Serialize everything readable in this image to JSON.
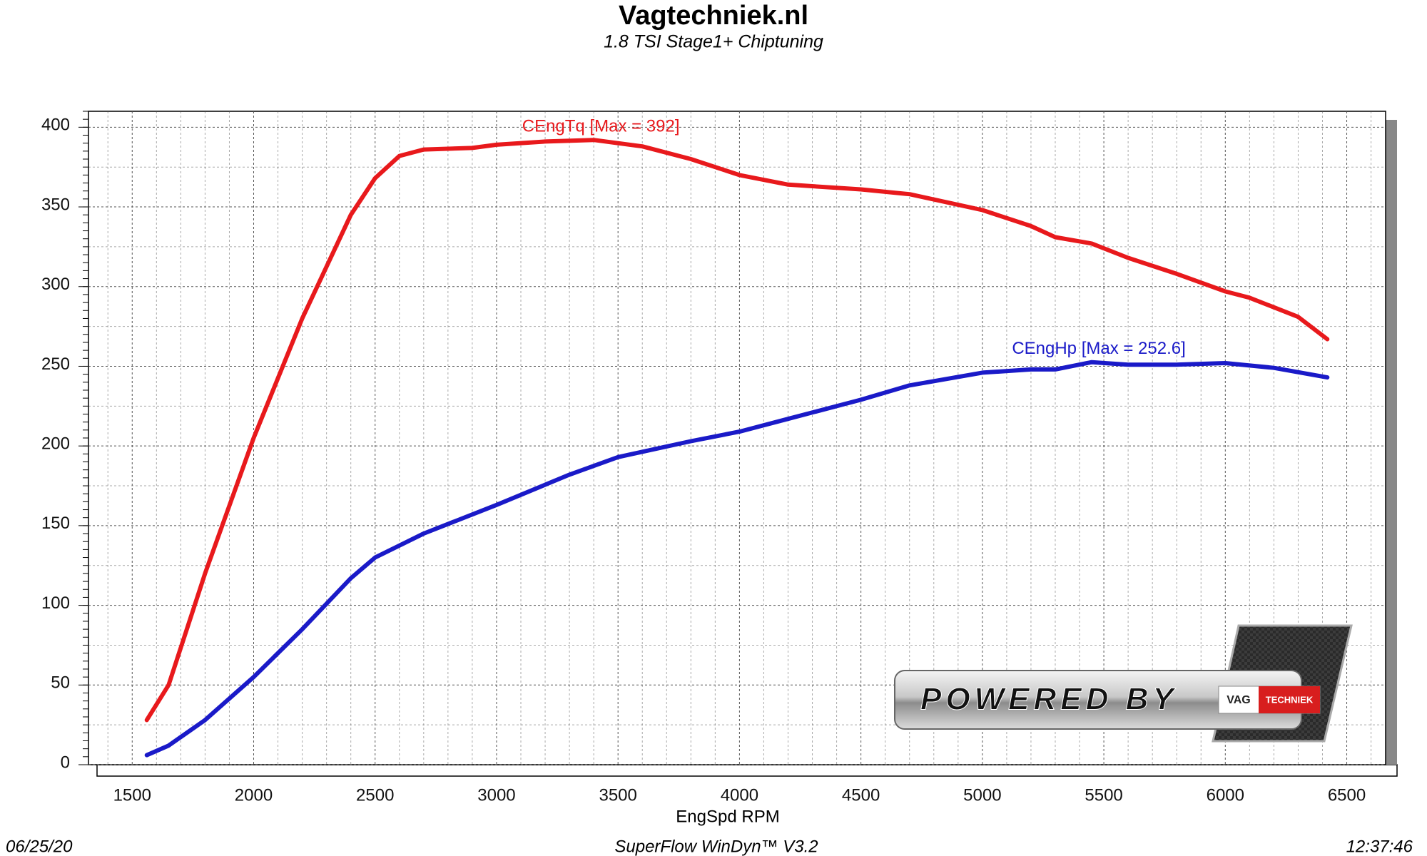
{
  "chart_data": {
    "type": "line",
    "title": "Vagtechniek.nl",
    "subtitle": "1.8 TSI Stage1+ Chiptuning",
    "x_label": "EngSpd RPM",
    "footer": {
      "left": "06/25/20",
      "center": "SuperFlow WinDyn™  V3.2",
      "right": "12:37:46"
    },
    "logo_text": [
      "POWERED BY",
      "VAG",
      "TECHNIEK"
    ],
    "xlim": [
      1320,
      6660
    ],
    "ylim": [
      0,
      410
    ],
    "xticks": [
      1500,
      2000,
      2500,
      3000,
      3500,
      4000,
      4500,
      5000,
      5500,
      6000,
      6500
    ],
    "yticks": [
      0,
      50,
      100,
      150,
      200,
      250,
      300,
      350,
      400
    ],
    "grid": true,
    "series": [
      {
        "name": "CEngTq",
        "color": "#e8191c",
        "x": [
          1560,
          1650,
          1800,
          2000,
          2200,
          2400,
          2500,
          2600,
          2700,
          2900,
          3000,
          3200,
          3400,
          3600,
          3800,
          4000,
          4200,
          4500,
          4700,
          5000,
          5200,
          5300,
          5450,
          5600,
          5800,
          6000,
          6100,
          6300,
          6420
        ],
        "values": [
          28,
          50,
          120,
          205,
          280,
          345,
          368,
          382,
          386,
          387,
          389,
          391,
          392,
          388,
          380,
          370,
          364,
          361,
          358,
          348,
          338,
          331,
          327,
          318,
          308,
          297,
          293,
          281,
          267
        ]
      },
      {
        "name": "CEngHp",
        "color": "#1a1ac8",
        "x": [
          1560,
          1650,
          1800,
          2000,
          2200,
          2400,
          2500,
          2700,
          3000,
          3300,
          3500,
          3800,
          4000,
          4200,
          4500,
          4700,
          5000,
          5200,
          5300,
          5450,
          5600,
          5800,
          6000,
          6200,
          6420
        ],
        "values": [
          6,
          12,
          28,
          55,
          85,
          117,
          130,
          145,
          163,
          182,
          193,
          203,
          209,
          217,
          229,
          238,
          246,
          248,
          248,
          252.6,
          251,
          251,
          252,
          249,
          243
        ]
      }
    ],
    "annotations": [
      {
        "text": "CEngTq [Max = 392]",
        "series": 0
      },
      {
        "text": "CEngHp [Max = 252.6]",
        "series": 1
      }
    ]
  }
}
